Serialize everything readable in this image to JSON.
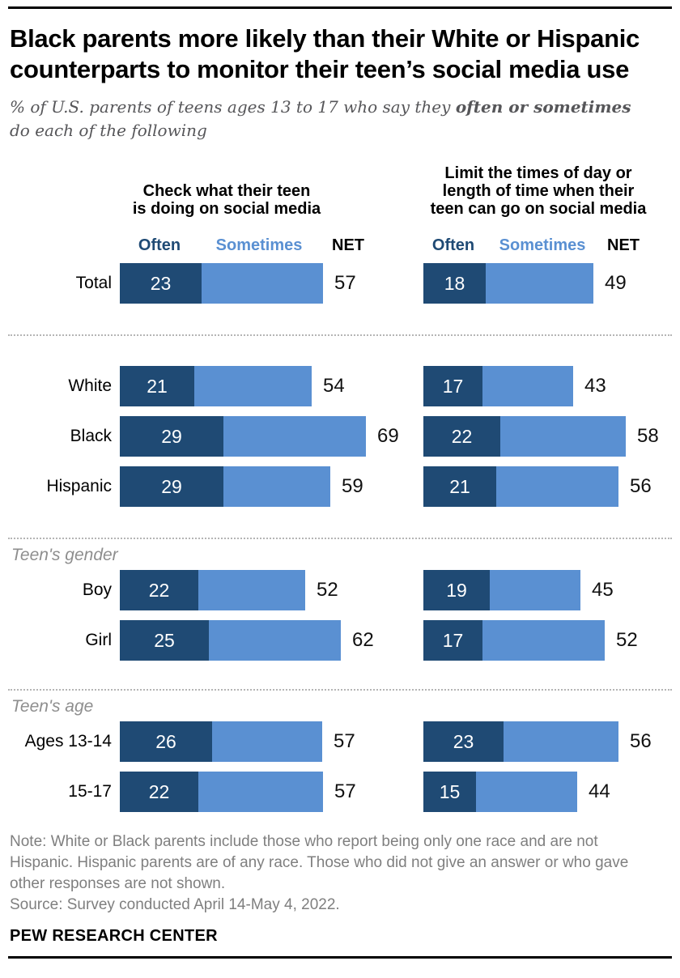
{
  "header": {
    "title_lines": [
      "Black parents more likely than their White or Hispanic",
      "counterparts to monitor their teen’s social media use"
    ],
    "subtitle": {
      "line1_regular": "% of U.S. parents of teens ages 13 to 17 who say they ",
      "line1_bold": "often or sometimes",
      "line2": "do each of the following"
    }
  },
  "charts": {
    "left_title_lines": [
      "Check what their teen",
      "is doing on social media"
    ],
    "right_title_lines": [
      "Limit the times of day or",
      "length of time when their",
      "teen can go on social media"
    ],
    "legend": {
      "often": "Often",
      "sometimes": "Sometimes",
      "net": "NET"
    }
  },
  "groups": [
    {
      "id": "total",
      "label": null,
      "rows": [
        {
          "label": "Total",
          "left": {
            "often": 23,
            "net": 57
          },
          "right": {
            "often": 18,
            "net": 49
          }
        }
      ]
    },
    {
      "id": "race",
      "label": null,
      "rows": [
        {
          "label": "White",
          "left": {
            "often": 21,
            "net": 54
          },
          "right": {
            "often": 17,
            "net": 43
          }
        },
        {
          "label": "Black",
          "left": {
            "often": 29,
            "net": 69
          },
          "right": {
            "often": 22,
            "net": 58
          }
        },
        {
          "label": "Hispanic",
          "left": {
            "often": 29,
            "net": 59
          },
          "right": {
            "often": 21,
            "net": 56
          }
        }
      ]
    },
    {
      "id": "gender",
      "label": "Teen's gender",
      "rows": [
        {
          "label": "Boy",
          "left": {
            "often": 22,
            "net": 52
          },
          "right": {
            "often": 19,
            "net": 45
          }
        },
        {
          "label": "Girl",
          "left": {
            "often": 25,
            "net": 62
          },
          "right": {
            "often": 17,
            "net": 52
          }
        }
      ]
    },
    {
      "id": "age",
      "label": "Teen's age",
      "rows": [
        {
          "label": "Ages 13-14",
          "left": {
            "often": 26,
            "net": 57
          },
          "right": {
            "often": 23,
            "net": 56
          }
        },
        {
          "label": "15-17",
          "left": {
            "often": 22,
            "net": 57
          },
          "right": {
            "often": 15,
            "net": 44
          }
        }
      ]
    }
  ],
  "chart_data": [
    {
      "type": "bar",
      "orientation": "horizontal",
      "stacked": true,
      "title": "Check what their teen is doing on social media",
      "categories": [
        "Total",
        "White",
        "Black",
        "Hispanic",
        "Boy",
        "Girl",
        "Ages 13-14",
        "15-17"
      ],
      "series": [
        {
          "name": "Often",
          "values": [
            23,
            21,
            29,
            29,
            22,
            25,
            26,
            22
          ]
        },
        {
          "name": "NET (often or sometimes)",
          "values": [
            57,
            54,
            69,
            59,
            52,
            62,
            57,
            57
          ]
        }
      ],
      "legend": [
        "Often",
        "Sometimes",
        "NET"
      ],
      "legend_position": "top",
      "xlim": [
        0,
        75
      ],
      "grid": false
    },
    {
      "type": "bar",
      "orientation": "horizontal",
      "stacked": true,
      "title": "Limit the times of day or length of time when their teen can go on social media",
      "categories": [
        "Total",
        "White",
        "Black",
        "Hispanic",
        "Boy",
        "Girl",
        "Ages 13-14",
        "15-17"
      ],
      "series": [
        {
          "name": "Often",
          "values": [
            18,
            17,
            22,
            21,
            19,
            17,
            23,
            15
          ]
        },
        {
          "name": "NET (often or sometimes)",
          "values": [
            49,
            43,
            58,
            56,
            45,
            52,
            56,
            44
          ]
        }
      ],
      "legend": [
        "Often",
        "Sometimes",
        "NET"
      ],
      "legend_position": "top",
      "xlim": [
        0,
        75
      ],
      "grid": false
    }
  ],
  "colors": {
    "often_dark_blue": "#1f4a74",
    "sometimes_light_blue": "#5a90d2",
    "net_text": "#111111",
    "divider_gray": "#b5b5b5",
    "subtitle_gray": "#565659",
    "note_gray": "#7f7f7f",
    "section_label_gray": "#8e8e8e"
  },
  "footer": {
    "note_lines": [
      "Note: White or Black parents include those who report being only one race and are not",
      "Hispanic. Hispanic parents are of any race. Those who did not give an answer or who gave",
      "other responses are not shown."
    ],
    "source": "Source: Survey conducted April 14-May 4, 2022.",
    "wordmark": "PEW RESEARCH CENTER"
  }
}
